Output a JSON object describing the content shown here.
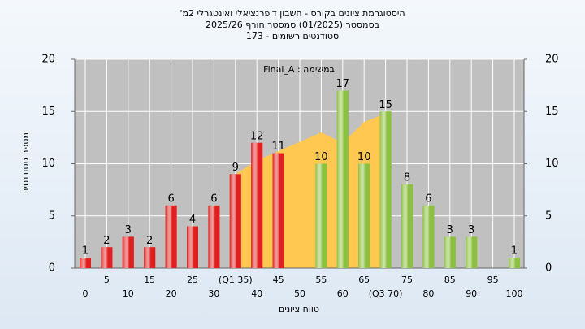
{
  "chart_data": {
    "type": "bar",
    "title": [
      "היסטוגרמת ציונים בקורס - חשבון דיפרנציאלי ואינטגרלי 2מ'",
      "בסמסטר  (01/2025)  סמסטר חורף 2025/26",
      "סטודנטים רשומים - 173"
    ],
    "annotation": "במשימה : Final_A",
    "x_label": "טווח ציונים",
    "y_label": "מספר סטודנטים",
    "categories": [
      "0",
      "5",
      "10",
      "15",
      "20",
      "25",
      "30",
      "(Q1 35)",
      "40",
      "45",
      "50",
      "55",
      "60",
      "65",
      "(Q3 70)",
      "75",
      "80",
      "85",
      "90",
      "95",
      "100"
    ],
    "values": [
      1,
      2,
      3,
      2,
      6,
      4,
      6,
      9,
      12,
      11,
      null,
      10,
      17,
      10,
      15,
      8,
      6,
      3,
      3,
      null,
      1
    ],
    "colors": [
      "#e02020",
      "#e02020",
      "#e02020",
      "#e02020",
      "#e02020",
      "#e02020",
      "#e02020",
      "#e02020",
      "#e02020",
      "#e02020",
      "#e02020",
      "#8cc040",
      "#8cc040",
      "#8cc040",
      "#8cc040",
      "#8cc040",
      "#8cc040",
      "#8cc040",
      "#8cc040",
      "#8cc040",
      "#8cc040"
    ],
    "area": {
      "color": "#ffc850",
      "values": [
        null,
        null,
        null,
        null,
        null,
        null,
        null,
        9,
        10.3,
        11.2,
        12.1,
        13,
        12,
        14,
        14.8,
        null,
        null,
        null,
        null,
        null,
        null
      ]
    },
    "ylim": [
      0,
      20
    ],
    "yticks": [
      0,
      5,
      10,
      15,
      20
    ],
    "grid": true
  }
}
